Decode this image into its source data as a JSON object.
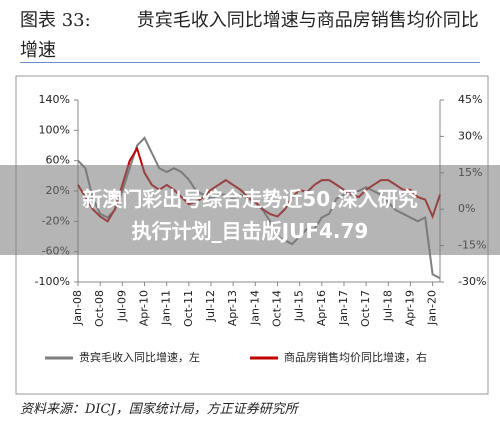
{
  "figure_label": "图表 33:",
  "chart_data": {
    "type": "line",
    "title": "贵宾毛收入同比增速与商品房销售均价同比增速",
    "categories": [
      "Jan-08",
      null,
      null,
      "Oct-08",
      null,
      null,
      "Jul-09",
      null,
      null,
      "Apr-10",
      null,
      null,
      "Jan-11",
      null,
      null,
      "Oct-11",
      null,
      null,
      "Jul-12",
      null,
      null,
      "Apr-13",
      null,
      null,
      "Jan-14",
      null,
      null,
      "Oct-14",
      null,
      null,
      "Jul-15",
      null,
      null,
      "Apr-16",
      null,
      null,
      "Jan-17",
      null,
      null,
      "Oct-17",
      null,
      null,
      "Jul-18",
      null,
      null,
      "Apr-19",
      null,
      null,
      "Jan-20",
      null
    ],
    "series": [
      {
        "name": "贵宾毛收入同比增速，左",
        "color": "#7f7f7f",
        "axis": "y",
        "values": [
          60,
          50,
          10,
          -10,
          -15,
          -5,
          20,
          50,
          80,
          90,
          70,
          50,
          45,
          50,
          45,
          35,
          20,
          15,
          10,
          15,
          15,
          10,
          15,
          10,
          5,
          -5,
          -20,
          -40,
          -45,
          -50,
          -40,
          -30,
          -30,
          -15,
          -10,
          10,
          15,
          20,
          20,
          25,
          20,
          15,
          5,
          -5,
          -10,
          -15,
          -20,
          -15,
          -90,
          -95
        ]
      },
      {
        "name": "商品房销售均价同比增速，右",
        "color": "#c00000",
        "axis": "y2",
        "values": [
          10,
          5,
          0,
          -3,
          -5,
          0,
          10,
          20,
          25,
          15,
          10,
          8,
          10,
          8,
          5,
          2,
          3,
          5,
          8,
          10,
          12,
          10,
          8,
          5,
          3,
          0,
          -2,
          -3,
          0,
          5,
          8,
          7,
          10,
          12,
          12,
          10,
          8,
          6,
          5,
          8,
          10,
          12,
          12,
          10,
          8,
          8,
          5,
          4,
          -3,
          6
        ]
      }
    ],
    "ylim": [
      -100,
      140
    ],
    "yticks": [
      {
        "value": 140,
        "label": "140%"
      },
      {
        "value": 100,
        "label": "100%"
      },
      {
        "value": 60,
        "label": "60%"
      },
      {
        "value": 20,
        "label": "20%"
      },
      {
        "value": -20,
        "label": "-20%"
      },
      {
        "value": -60,
        "label": "-60%"
      },
      {
        "value": -100,
        "label": "-100%"
      }
    ],
    "y2lim": [
      -30,
      45
    ],
    "y2ticks": [
      {
        "value": 45,
        "label": "45%"
      },
      {
        "value": 30,
        "label": "30%"
      },
      {
        "value": 15,
        "label": "15%"
      },
      {
        "value": 0,
        "label": "0%"
      },
      {
        "value": -15,
        "label": "-15%"
      },
      {
        "value": -30,
        "label": "-30%"
      }
    ]
  },
  "source": "资料来源：DICJ，国家统计局，方正证券研究所",
  "overlay": [
    "新澳门彩出号综合走势近50,深入研究",
    "执行计划_目击版JUF4.79"
  ]
}
